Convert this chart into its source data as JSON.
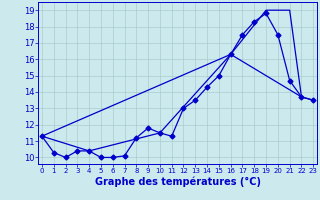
{
  "line1": {
    "x": [
      0,
      1,
      2,
      3,
      4,
      5,
      6,
      7,
      8,
      9,
      10,
      11,
      12,
      13,
      14,
      15,
      16,
      17,
      18,
      19,
      20,
      21,
      22,
      23
    ],
    "y": [
      11.3,
      10.3,
      10.0,
      10.4,
      10.4,
      10.0,
      10.0,
      10.1,
      11.2,
      11.8,
      11.5,
      11.3,
      13.0,
      13.5,
      14.3,
      15.0,
      16.3,
      17.5,
      18.3,
      18.8,
      17.5,
      14.7,
      13.7,
      13.5
    ],
    "color": "#0000cc",
    "markersize": 2.5,
    "linewidth": 0.9
  },
  "line2": {
    "x": [
      0,
      4,
      10,
      16,
      22
    ],
    "y": [
      11.3,
      10.4,
      11.5,
      16.3,
      13.7
    ],
    "color": "#0000cc",
    "linewidth": 0.9
  },
  "line3": {
    "x": [
      0,
      16,
      19,
      21,
      22,
      23
    ],
    "y": [
      11.3,
      16.3,
      19.0,
      19.0,
      13.7,
      13.5
    ],
    "color": "#0000cc",
    "linewidth": 0.9
  },
  "xlim": [
    -0.3,
    23.3
  ],
  "ylim": [
    9.6,
    19.5
  ],
  "xticks": [
    0,
    1,
    2,
    3,
    4,
    5,
    6,
    7,
    8,
    9,
    10,
    11,
    12,
    13,
    14,
    15,
    16,
    17,
    18,
    19,
    20,
    21,
    22,
    23
  ],
  "yticks": [
    10,
    11,
    12,
    13,
    14,
    15,
    16,
    17,
    18,
    19
  ],
  "xlabel": "Graphe des températures (°C)",
  "bg_color": "#cce9ed",
  "grid_color": "#aacccc",
  "line_color": "#0000cc",
  "xtick_fontsize": 5.0,
  "ytick_fontsize": 6.0,
  "label_fontsize": 7.0
}
